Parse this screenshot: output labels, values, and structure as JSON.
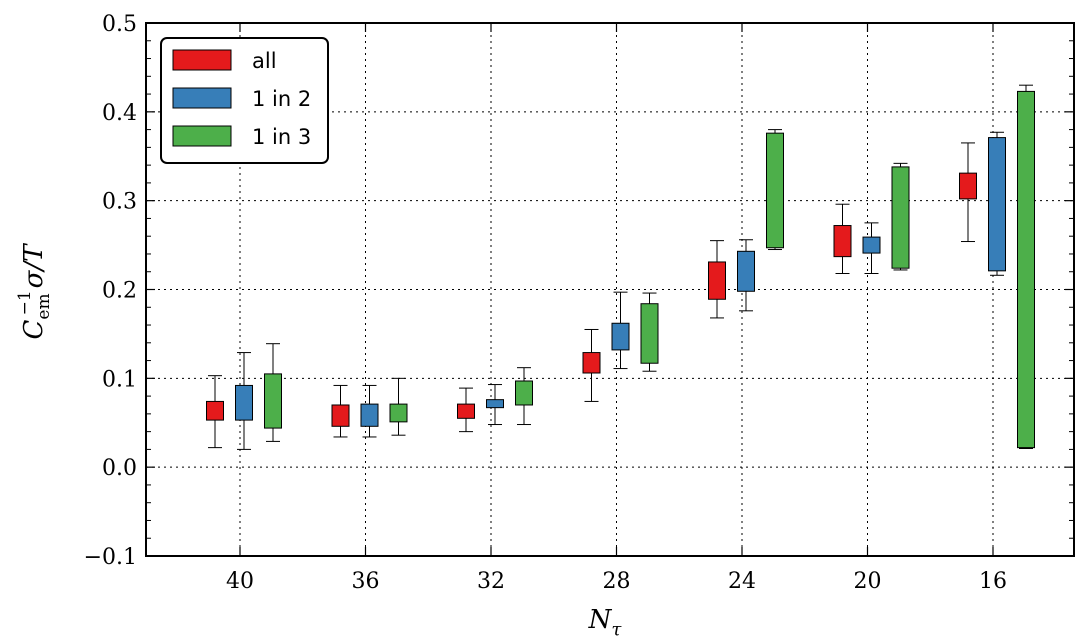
{
  "chart_data": {
    "type": "box",
    "title": "",
    "xlabel": "N_τ",
    "ylabel": "C_em^{-1} σ/T",
    "categories": [
      "40",
      "36",
      "32",
      "28",
      "24",
      "20",
      "16"
    ],
    "ylim": [
      -0.1,
      0.5
    ],
    "yticks": [
      -0.1,
      0.0,
      0.1,
      0.2,
      0.3,
      0.4,
      0.5
    ],
    "ytick_labels": [
      "−0.1",
      "0.0",
      "0.1",
      "0.2",
      "0.3",
      "0.4",
      "0.5"
    ],
    "grid": true,
    "legend_position": "top-left",
    "series": [
      {
        "name": "all",
        "color": "#e41a1c",
        "boxes": [
          {
            "whisker_low": 0.022,
            "q1": 0.053,
            "q3": 0.074,
            "whisker_high": 0.103
          },
          {
            "whisker_low": 0.034,
            "q1": 0.046,
            "q3": 0.07,
            "whisker_high": 0.092
          },
          {
            "whisker_low": 0.04,
            "q1": 0.055,
            "q3": 0.071,
            "whisker_high": 0.089
          },
          {
            "whisker_low": 0.074,
            "q1": 0.106,
            "q3": 0.129,
            "whisker_high": 0.155
          },
          {
            "whisker_low": 0.168,
            "q1": 0.189,
            "q3": 0.231,
            "whisker_high": 0.255
          },
          {
            "whisker_low": 0.218,
            "q1": 0.237,
            "q3": 0.272,
            "whisker_high": 0.296
          },
          {
            "whisker_low": 0.254,
            "q1": 0.302,
            "q3": 0.331,
            "whisker_high": 0.365
          }
        ]
      },
      {
        "name": "1 in 2",
        "color": "#377eb8",
        "boxes": [
          {
            "whisker_low": 0.02,
            "q1": 0.053,
            "q3": 0.092,
            "whisker_high": 0.129
          },
          {
            "whisker_low": 0.034,
            "q1": 0.046,
            "q3": 0.071,
            "whisker_high": 0.092
          },
          {
            "whisker_low": 0.048,
            "q1": 0.067,
            "q3": 0.076,
            "whisker_high": 0.093
          },
          {
            "whisker_low": 0.111,
            "q1": 0.132,
            "q3": 0.162,
            "whisker_high": 0.197
          },
          {
            "whisker_low": 0.176,
            "q1": 0.198,
            "q3": 0.243,
            "whisker_high": 0.256
          },
          {
            "whisker_low": 0.218,
            "q1": 0.241,
            "q3": 0.259,
            "whisker_high": 0.275
          },
          {
            "whisker_low": 0.216,
            "q1": 0.221,
            "q3": 0.371,
            "whisker_high": 0.377
          }
        ]
      },
      {
        "name": "1 in 3",
        "color": "#4daf4a",
        "boxes": [
          {
            "whisker_low": 0.029,
            "q1": 0.044,
            "q3": 0.105,
            "whisker_high": 0.139
          },
          {
            "whisker_low": 0.036,
            "q1": 0.051,
            "q3": 0.071,
            "whisker_high": 0.1
          },
          {
            "whisker_low": 0.048,
            "q1": 0.07,
            "q3": 0.097,
            "whisker_high": 0.112
          },
          {
            "whisker_low": 0.108,
            "q1": 0.117,
            "q3": 0.184,
            "whisker_high": 0.196
          },
          {
            "whisker_low": 0.245,
            "q1": 0.247,
            "q3": 0.376,
            "whisker_high": 0.38
          },
          {
            "whisker_low": 0.222,
            "q1": 0.224,
            "q3": 0.338,
            "whisker_high": 0.342
          },
          {
            "whisker_low": 0.021,
            "q1": 0.022,
            "q3": 0.423,
            "whisker_high": 0.43
          }
        ]
      }
    ]
  }
}
